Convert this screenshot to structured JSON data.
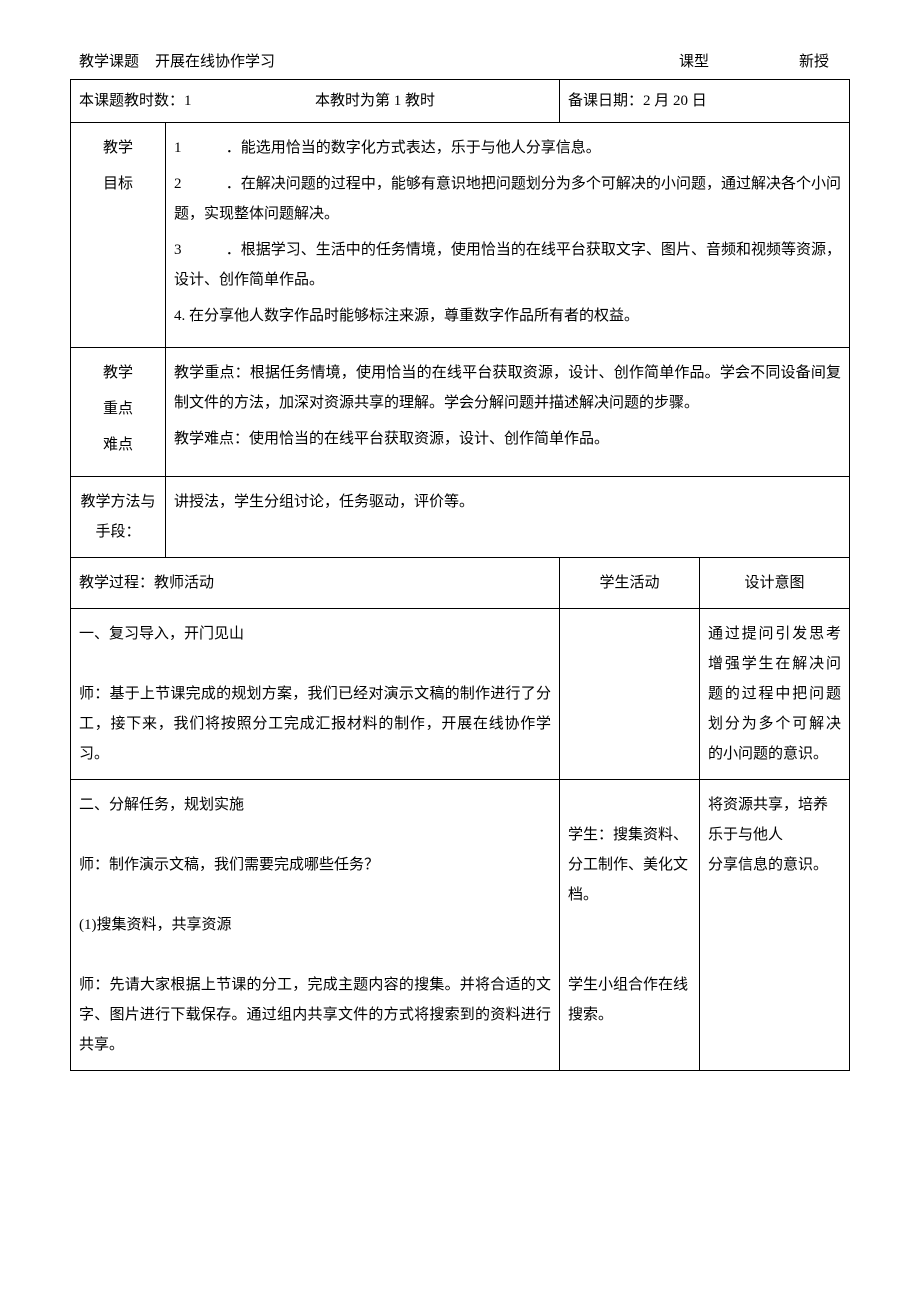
{
  "header": {
    "label_topic": "教学课题",
    "topic": "开展在线协作学习",
    "label_type": "课型",
    "type": "新授"
  },
  "meta": {
    "periods_label": "本课题教时数：1",
    "this_period_label": "本教时为第 1 教时",
    "prep_date_label": "备课日期：2 月 20 日"
  },
  "objectives": {
    "label": "教学\n目标",
    "items": [
      {
        "num": "1",
        "text": "．能选用恰当的数字化方式表达，乐于与他人分享信息。"
      },
      {
        "num": "2",
        "text": "．在解决问题的过程中，能够有意识地把问题划分为多个可解决的小问题，通过解决各个小问题，实现整体问题解决。"
      },
      {
        "num": "3",
        "text": "．根据学习、生活中的任务情境，使用恰当的在线平台获取文字、图片、音频和视频等资源，设计、创作简单作品。"
      },
      {
        "num": "4.",
        "text": "在分享他人数字作品时能够标注来源，尊重数字作品所有者的权益。"
      }
    ]
  },
  "keypoints": {
    "label": "教学\n重点\n难点",
    "focus_label": "教学重点：",
    "focus_text": "根据任务情境，使用恰当的在线平台获取资源，设计、创作简单作品。学会不同设备间复制文件的方法，加深对资源共享的理解。学会分解问题并描述解决问题的步骤。",
    "difficult_label": "教学难点：",
    "difficult_text": "使用恰当的在线平台获取资源，设计、创作简单作品。"
  },
  "methods": {
    "label": "教学方法与手段：",
    "text": "讲授法，学生分组讨论，任务驱动，评价等。"
  },
  "process": {
    "header_teacher": "教学过程：教师活动",
    "header_student": "学生活动",
    "header_intent": "设计意图",
    "rows": [
      {
        "teacher": "一、复习导入，开门见山\n\n师：基于上节课完成的规划方案，我们已经对演示文稿的制作进行了分工，接下来，我们将按照分工完成汇报材料的制作，开展在线协作学习。",
        "student": "",
        "intent": "通过提问引发思考增强学生在解决问题的过程中把问题划分为多个可解决的小问题的意识。"
      },
      {
        "teacher": "二、分解任务，规划实施\n\n师：制作演示文稿，我们需要完成哪些任务？\n\n(1)搜集资料，共享资源\n\n师：先请大家根据上节课的分工，完成主题内容的搜集。并将合适的文字、图片进行下载保存。通过组内共享文件的方式将搜索到的资料进行共享。",
        "student": "学生：搜集资料、分工制作、美化文档。\n\n\n学生小组合作在线搜索。",
        "intent": "将资源共享，培养乐于与他人\n分享信息的意识。"
      }
    ]
  }
}
